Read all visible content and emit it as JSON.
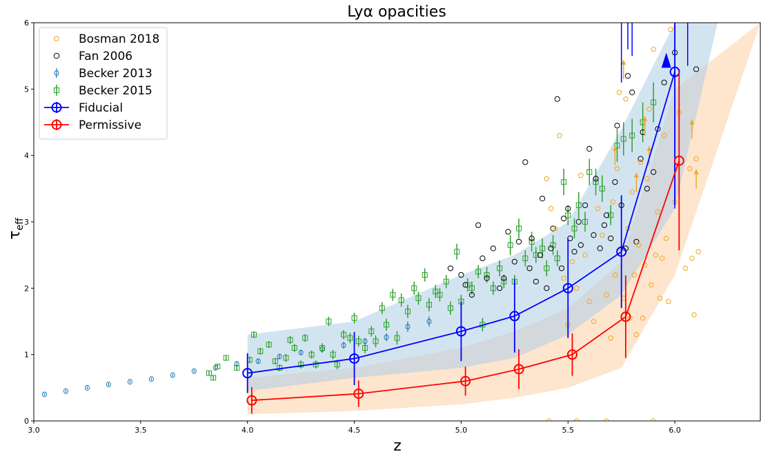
{
  "chart_data": {
    "type": "scatter",
    "title": "Lyα opacities",
    "xlabel": "z",
    "ylabel_main": "τ",
    "ylabel_sub": "eff",
    "xlim": [
      3.0,
      6.4
    ],
    "ylim": [
      0,
      6
    ],
    "xticks": [
      "3.0",
      "3.5",
      "4.0",
      "4.5",
      "5.0",
      "5.5",
      "6.0"
    ],
    "yticks": [
      "0",
      "1",
      "2",
      "3",
      "4",
      "5",
      "6"
    ],
    "legend_position": "top-left",
    "colors": {
      "bosman": "#f5a623",
      "fan": "#000000",
      "becker2013": "#1f77b4",
      "becker2015": "#2ca02c",
      "fiducial": "#0000ff",
      "permissive": "#ff0000",
      "band_blue": "#aecde6",
      "band_orange": "#fbd0a5"
    },
    "legend": [
      {
        "key": "bosman",
        "label": "Bosman 2018"
      },
      {
        "key": "fan",
        "label": "Fan 2006"
      },
      {
        "key": "becker2013",
        "label": "Becker 2013"
      },
      {
        "key": "becker2015",
        "label": "Becker 2015"
      },
      {
        "key": "fiducial",
        "label": "Fiducial"
      },
      {
        "key": "permissive",
        "label": "Permissive"
      }
    ],
    "bands": {
      "blue": {
        "x": [
          4.0,
          4.5,
          5.0,
          5.25,
          5.5,
          5.75,
          6.0,
          6.2
        ],
        "low": [
          0.45,
          0.65,
          0.8,
          0.95,
          1.3,
          1.9,
          3.2,
          6.0
        ],
        "high": [
          1.3,
          1.5,
          2.2,
          2.5,
          3.0,
          4.4,
          6.0,
          6.0
        ]
      },
      "orange": {
        "x": [
          4.0,
          4.5,
          5.0,
          5.25,
          5.5,
          5.75,
          6.0,
          6.4
        ],
        "low": [
          0.1,
          0.15,
          0.25,
          0.35,
          0.5,
          0.8,
          2.2,
          6.0
        ],
        "high": [
          0.65,
          0.8,
          1.1,
          1.35,
          1.7,
          2.4,
          5.0,
          6.0
        ]
      }
    },
    "series": [
      {
        "key": "fiducial",
        "x": [
          4.0,
          4.5,
          5.0,
          5.25,
          5.5,
          5.75,
          6.0
        ],
        "y": [
          0.72,
          0.94,
          1.35,
          1.58,
          2.0,
          2.55,
          5.26
        ],
        "err": [
          0.3,
          0.4,
          0.45,
          0.55,
          0.75,
          0.85,
          2.0
        ]
      },
      {
        "key": "permissive",
        "x": [
          4.02,
          4.52,
          5.02,
          5.27,
          5.52,
          5.77,
          6.02
        ],
        "y": [
          0.31,
          0.41,
          0.6,
          0.78,
          1.0,
          1.57,
          3.92
        ],
        "err": [
          0.2,
          0.2,
          0.22,
          0.3,
          0.32,
          0.62,
          1.35
        ]
      },
      {
        "key": "becker2013",
        "x": [
          3.05,
          3.15,
          3.25,
          3.35,
          3.45,
          3.55,
          3.65,
          3.75,
          3.85,
          3.95,
          4.05,
          4.15,
          4.25,
          4.35,
          4.45,
          4.55,
          4.65,
          4.75,
          4.85
        ],
        "y": [
          0.4,
          0.45,
          0.5,
          0.55,
          0.59,
          0.63,
          0.69,
          0.75,
          0.8,
          0.86,
          0.9,
          0.97,
          1.03,
          1.08,
          1.14,
          1.2,
          1.26,
          1.42,
          1.5
        ],
        "err": [
          0.02,
          0.02,
          0.02,
          0.02,
          0.02,
          0.02,
          0.02,
          0.02,
          0.03,
          0.03,
          0.04,
          0.04,
          0.04,
          0.05,
          0.05,
          0.05,
          0.06,
          0.08,
          0.08
        ]
      },
      {
        "key": "becker2015",
        "x": [
          3.82,
          3.84,
          3.86,
          3.9,
          3.95,
          4.01,
          4.03,
          4.06,
          4.1,
          4.13,
          4.15,
          4.18,
          4.2,
          4.22,
          4.25,
          4.27,
          4.3,
          4.32,
          4.35,
          4.38,
          4.4,
          4.42,
          4.45,
          4.48,
          4.5,
          4.52,
          4.55,
          4.58,
          4.6,
          4.63,
          4.65,
          4.68,
          4.7,
          4.72,
          4.75,
          4.78,
          4.8,
          4.83,
          4.85,
          4.88,
          4.9,
          4.93,
          4.95,
          4.98,
          5.0,
          5.03,
          5.05,
          5.08,
          5.1,
          5.12,
          5.15,
          5.18,
          5.2,
          5.23,
          5.25,
          5.27,
          5.3,
          5.33,
          5.35,
          5.38,
          5.4,
          5.43,
          5.45,
          5.48,
          5.5,
          5.53,
          5.55,
          5.58,
          5.6,
          5.63,
          5.66,
          5.7,
          5.73,
          5.76,
          5.8,
          5.85,
          5.9
        ],
        "y": [
          0.72,
          0.65,
          0.82,
          0.95,
          0.8,
          0.92,
          1.3,
          1.05,
          1.15,
          0.9,
          0.8,
          0.95,
          1.22,
          1.1,
          0.85,
          1.25,
          1.0,
          0.85,
          1.1,
          1.5,
          1.0,
          0.85,
          1.3,
          1.25,
          1.55,
          1.2,
          1.1,
          1.35,
          1.2,
          1.7,
          1.45,
          1.9,
          1.25,
          1.82,
          1.65,
          2.0,
          1.85,
          2.2,
          1.75,
          1.95,
          1.9,
          2.1,
          1.7,
          2.55,
          1.8,
          2.05,
          2.0,
          2.25,
          1.45,
          2.2,
          2.0,
          2.3,
          2.1,
          2.65,
          2.1,
          2.9,
          2.45,
          2.7,
          2.5,
          2.6,
          2.3,
          2.65,
          2.45,
          3.6,
          3.1,
          2.9,
          3.25,
          3.0,
          3.75,
          3.6,
          3.5,
          3.1,
          4.15,
          4.25,
          4.3,
          4.5,
          4.8
        ],
        "err": [
          0.03,
          0.03,
          0.04,
          0.04,
          0.04,
          0.05,
          0.05,
          0.05,
          0.05,
          0.05,
          0.05,
          0.06,
          0.06,
          0.06,
          0.06,
          0.06,
          0.06,
          0.06,
          0.07,
          0.07,
          0.07,
          0.07,
          0.07,
          0.08,
          0.08,
          0.08,
          0.08,
          0.08,
          0.09,
          0.09,
          0.09,
          0.09,
          0.1,
          0.1,
          0.1,
          0.1,
          0.1,
          0.1,
          0.1,
          0.1,
          0.1,
          0.1,
          0.1,
          0.12,
          0.1,
          0.1,
          0.1,
          0.1,
          0.1,
          0.12,
          0.1,
          0.12,
          0.1,
          0.15,
          0.1,
          0.15,
          0.12,
          0.15,
          0.12,
          0.15,
          0.12,
          0.15,
          0.12,
          0.2,
          0.15,
          0.15,
          0.2,
          0.15,
          0.2,
          0.2,
          0.2,
          0.15,
          0.25,
          0.25,
          0.25,
          0.3,
          0.3
        ]
      },
      {
        "key": "fan",
        "x": [
          4.95,
          5.0,
          5.02,
          5.05,
          5.08,
          5.1,
          5.12,
          5.15,
          5.18,
          5.2,
          5.22,
          5.25,
          5.27,
          5.3,
          5.32,
          5.33,
          5.35,
          5.37,
          5.38,
          5.4,
          5.42,
          5.43,
          5.45,
          5.47,
          5.48,
          5.5,
          5.51,
          5.53,
          5.55,
          5.56,
          5.58,
          5.6,
          5.62,
          5.63,
          5.65,
          5.67,
          5.68,
          5.7,
          5.72,
          5.73,
          5.75,
          5.77,
          5.78,
          5.8,
          5.82,
          5.84,
          5.85,
          5.87,
          5.9,
          5.92,
          5.95,
          6.0,
          6.1
        ],
        "y": [
          2.3,
          2.2,
          2.05,
          1.9,
          2.95,
          2.45,
          2.15,
          2.6,
          2.0,
          2.15,
          2.85,
          2.4,
          2.7,
          3.9,
          2.3,
          2.75,
          2.1,
          2.5,
          3.35,
          2.0,
          2.6,
          2.9,
          4.85,
          2.3,
          3.05,
          3.2,
          2.75,
          2.55,
          3.0,
          2.65,
          3.25,
          4.1,
          2.8,
          3.65,
          2.6,
          2.95,
          3.1,
          2.75,
          3.6,
          4.45,
          3.25,
          2.6,
          5.2,
          4.95,
          2.7,
          3.95,
          4.35,
          3.5,
          3.75,
          4.4,
          5.1,
          5.55,
          5.3
        ],
        "err": []
      },
      {
        "key": "bosman",
        "x": [
          5.4,
          5.42,
          5.44,
          5.46,
          5.48,
          5.5,
          5.52,
          5.54,
          5.56,
          5.58,
          5.6,
          5.62,
          5.64,
          5.66,
          5.68,
          5.7,
          5.71,
          5.72,
          5.73,
          5.74,
          5.75,
          5.76,
          5.77,
          5.78,
          5.79,
          5.8,
          5.81,
          5.82,
          5.83,
          5.84,
          5.85,
          5.86,
          5.87,
          5.88,
          5.89,
          5.9,
          5.91,
          5.92,
          5.93,
          5.94,
          5.95,
          5.96,
          5.97,
          5.98,
          6.0,
          6.02,
          6.05,
          6.07,
          6.08,
          6.09,
          6.1,
          6.11
        ],
        "y": [
          3.65,
          3.2,
          2.9,
          4.3,
          2.15,
          1.45,
          2.4,
          2.0,
          3.7,
          2.5,
          1.8,
          1.5,
          3.2,
          2.8,
          1.9,
          1.25,
          3.3,
          2.2,
          3.8,
          4.95,
          2.6,
          1.85,
          4.85,
          2.9,
          1.55,
          3.45,
          2.2,
          1.3,
          2.65,
          3.9,
          1.55,
          2.35,
          3.65,
          4.7,
          2.05,
          5.6,
          2.5,
          3.15,
          1.85,
          2.45,
          4.3,
          2.75,
          1.8,
          5.9,
          3.3,
          4.65,
          2.3,
          3.8,
          2.45,
          1.6,
          3.95,
          2.55
        ],
        "err": []
      }
    ],
    "bosman_lower_limits": {
      "x": [
        5.72,
        5.76,
        5.82,
        5.86,
        5.88,
        6.08,
        6.1
      ],
      "y": [
        3.85,
        5.15,
        3.45,
        4.3,
        3.85,
        4.25,
        3.5
      ]
    },
    "fiducial_lower_limits": {
      "x": [
        5.96
      ],
      "y": [
        5.55
      ]
    },
    "fan_lower_limits": {
      "x": [
        5.75,
        5.78,
        5.8,
        6.0,
        6.06
      ],
      "y": [
        5.1,
        5.6,
        5.5,
        3.2,
        5.35
      ]
    },
    "bosman_zero_points": {
      "x": [
        5.41,
        5.54,
        5.68,
        5.9
      ],
      "y": [
        0.0,
        0.0,
        0.0,
        0.0
      ]
    }
  }
}
